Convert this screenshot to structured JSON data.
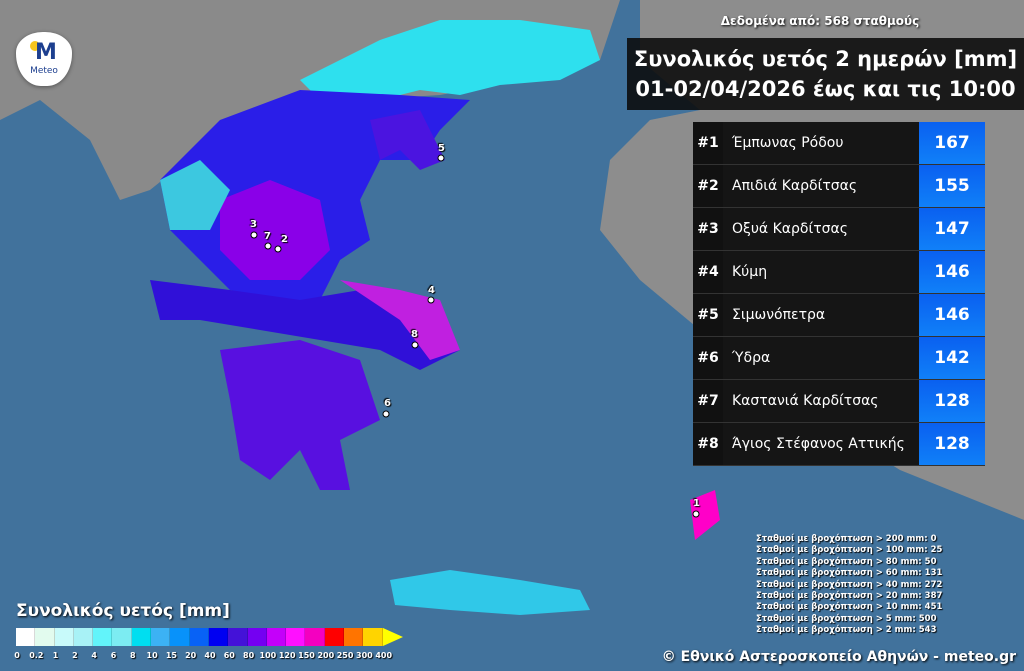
{
  "source_text": "Δεδομένα από: 568 σταθμούς",
  "title": {
    "line1": "Συνολικός υετός 2 ημερών [mm]",
    "line2": "01-02/04/2026 έως και τις 10:00"
  },
  "logo": {
    "text": "Meteo"
  },
  "ranking": [
    {
      "rank": "#1",
      "name": "Έμπωνας Ρόδου",
      "value": "167"
    },
    {
      "rank": "#2",
      "name": "Απιδιά Καρδίτσας",
      "value": "155"
    },
    {
      "rank": "#3",
      "name": "Οξυά Καρδίτσας",
      "value": "147"
    },
    {
      "rank": "#4",
      "name": "Κύμη",
      "value": "146"
    },
    {
      "rank": "#5",
      "name": "Σιμωνόπετρα",
      "value": "146"
    },
    {
      "rank": "#6",
      "name": "Ύδρα",
      "value": "142"
    },
    {
      "rank": "#7",
      "name": "Καστανιά Καρδίτσας",
      "value": "128"
    },
    {
      "rank": "#8",
      "name": "Άγιος Στέφανος Αττικής",
      "value": "128"
    }
  ],
  "markers": [
    "1",
    "2",
    "3",
    "4",
    "5",
    "6",
    "7",
    "8"
  ],
  "stats": [
    "Σταθμοί με βροχόπτωση > 200 mm: 0",
    "Σταθμοί με βροχόπτωση > 100 mm: 25",
    "Σταθμοί με βροχόπτωση > 80 mm: 50",
    "Σταθμοί με βροχόπτωση > 60 mm: 131",
    "Σταθμοί με βροχόπτωση > 40 mm: 272",
    "Σταθμοί με βροχόπτωση > 20 mm: 387",
    "Σταθμοί με βροχόπτωση > 10 mm: 451",
    "Σταθμοί με βροχόπτωση > 5 mm: 500",
    "Σταθμοί με βροχόπτωση > 2 mm: 543"
  ],
  "legend": {
    "title": "Συνολικός υετός [mm]",
    "ticks": [
      "0",
      "0.2",
      "1",
      "2",
      "4",
      "6",
      "8",
      "10",
      "15",
      "20",
      "40",
      "60",
      "80",
      "100",
      "120",
      "150",
      "200",
      "250",
      "300",
      "400"
    ],
    "colors": [
      "#ffffff",
      "#e2fbee",
      "#c8fafa",
      "#a8f2f6",
      "#62f4fa",
      "#7cecf2",
      "#00def0",
      "#3cb2f4",
      "#0892fa",
      "#0862f6",
      "#0000f2",
      "#4412d8",
      "#7400f2",
      "#c400fa",
      "#ff10ff",
      "#f400c0",
      "#ff0000",
      "#ff7400",
      "#ffd400"
    ],
    "arrow_color": "#ffff00"
  },
  "credit": "© Εθνικό Αστεροσκοπείο Αθηνών - meteo.gr"
}
